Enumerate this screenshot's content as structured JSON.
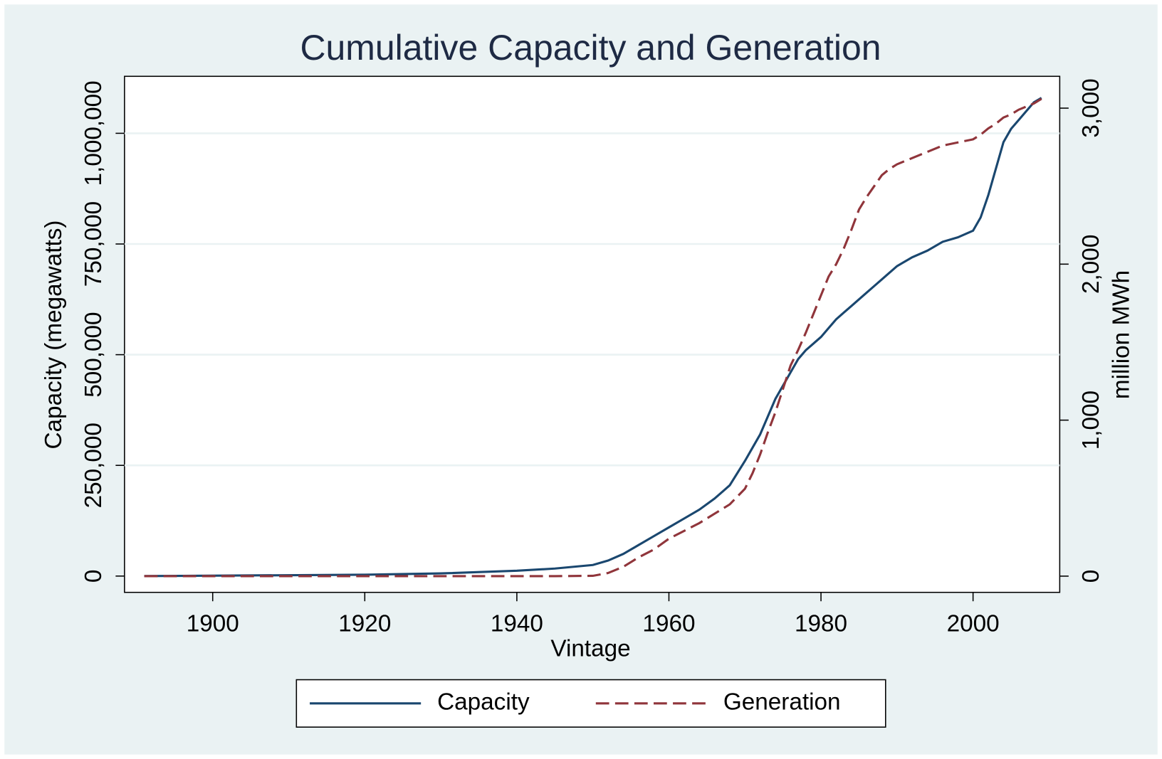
{
  "chart_data": {
    "type": "line",
    "title": "Cumulative Capacity and Generation",
    "xlabel": "Vintage",
    "ylabel": "Capacity (megawatts)",
    "y2label": "million MWh",
    "x": [
      1891,
      1920,
      1930,
      1940,
      1945,
      1950,
      1952,
      1954,
      1956,
      1958,
      1960,
      1962,
      1964,
      1966,
      1968,
      1970,
      1971,
      1972,
      1973,
      1974,
      1975,
      1976,
      1977,
      1978,
      1979,
      1980,
      1981,
      1982,
      1983,
      1984,
      1985,
      1986,
      1987,
      1988,
      1989,
      1990,
      1992,
      1994,
      1996,
      1998,
      2000,
      2001,
      2002,
      2003,
      2004,
      2005,
      2006,
      2007,
      2008,
      2009
    ],
    "series": [
      {
        "name": "Capacity",
        "color": "#1a476f",
        "dash": false,
        "axis": "y",
        "values": [
          0,
          3000,
          6000,
          12000,
          17000,
          25000,
          35000,
          50000,
          70000,
          90000,
          110000,
          130000,
          150000,
          175000,
          205000,
          260000,
          290000,
          320000,
          360000,
          400000,
          430000,
          460000,
          490000,
          510000,
          525000,
          540000,
          560000,
          580000,
          595000,
          610000,
          625000,
          640000,
          655000,
          670000,
          685000,
          700000,
          720000,
          735000,
          755000,
          765000,
          780000,
          810000,
          860000,
          920000,
          980000,
          1010000,
          1030000,
          1050000,
          1070000,
          1080000
        ]
      },
      {
        "name": "Generation",
        "color": "#90353b",
        "dash": true,
        "axis": "y2",
        "values": [
          0,
          0,
          0,
          0,
          0,
          2,
          20,
          60,
          120,
          170,
          240,
          290,
          340,
          400,
          460,
          560,
          660,
          780,
          920,
          1050,
          1200,
          1350,
          1450,
          1560,
          1680,
          1800,
          1920,
          2000,
          2100,
          2220,
          2350,
          2430,
          2500,
          2570,
          2610,
          2640,
          2680,
          2720,
          2760,
          2780,
          2800,
          2830,
          2870,
          2900,
          2940,
          2960,
          2990,
          3010,
          3030,
          3060
        ]
      }
    ],
    "xlim": [
      1888.4,
      2011.4
    ],
    "xticks": [
      1900,
      1920,
      1940,
      1960,
      1980,
      2000
    ],
    "ylim": [
      -36800,
      1128700
    ],
    "yticks": [
      0,
      {
        "value": 250000,
        "label": "250,000"
      },
      {
        "value": 500000,
        "label": "500,000"
      },
      {
        "value": 750000,
        "label": "750,000"
      },
      {
        "value": 1000000,
        "label": "1,000,000"
      }
    ],
    "y2lim": [
      -104,
      3204
    ],
    "y2ticks": [
      0,
      {
        "value": 1000,
        "label": "1,000"
      },
      {
        "value": 2000,
        "label": "2,000"
      },
      {
        "value": 3000,
        "label": "3,000"
      }
    ],
    "grid": true,
    "legend": "bottom"
  }
}
